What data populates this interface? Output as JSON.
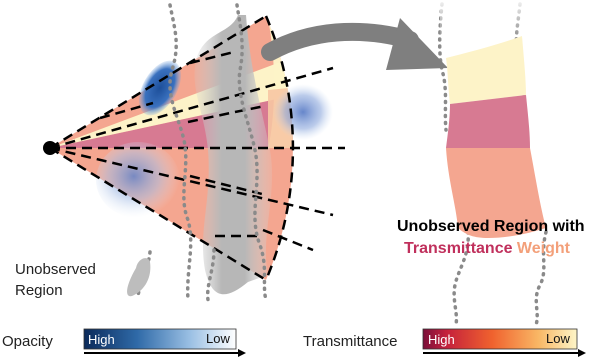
{
  "labels": {
    "unobserved_line1": "Unobserved",
    "unobserved_line2": "Region",
    "caption_line1": "Unobserved Region with",
    "caption_part_a": "Transmittance",
    "caption_part_b": " Weight"
  },
  "legends": {
    "opacity": {
      "title": "Opacity",
      "high": "High",
      "low": "Low"
    },
    "transmittance": {
      "title": "Transmittance",
      "high": "High",
      "low": "Low"
    }
  },
  "colors": {
    "ray_bg": "#f4a690",
    "band_pink": "#d87a92",
    "band_yellow": "#fdf3c8",
    "arrow": "#7f7f7f",
    "caption_dark": "#c0305c",
    "caption_light": "#f3a07a",
    "opacity_high": "#0c2c5c",
    "opacity_low": "#ffffff"
  }
}
